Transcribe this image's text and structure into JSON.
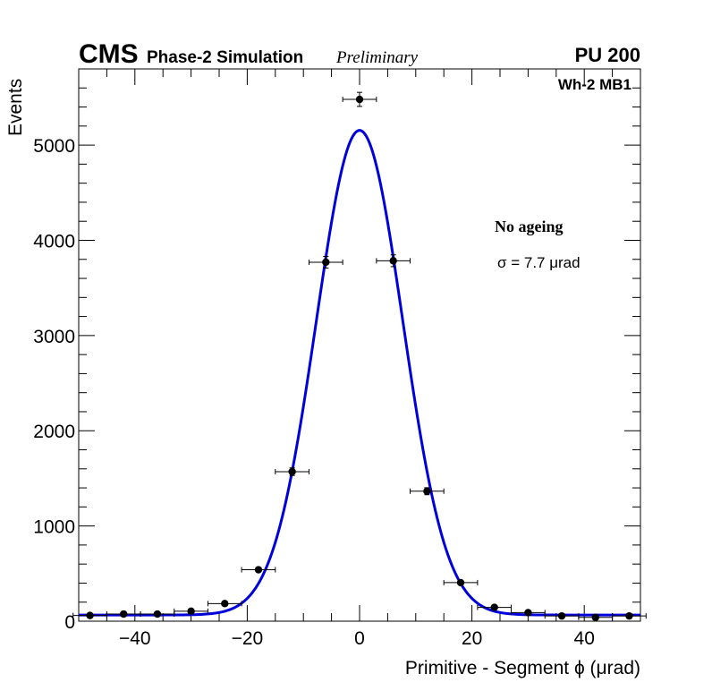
{
  "header": {
    "experiment": "CMS",
    "simulation_label": "Phase-2 Simulation",
    "status_label": "Preliminary",
    "pileup_label": "PU 200"
  },
  "chart_data": {
    "type": "scatter",
    "title": "",
    "chamber_label": "Wh-2 MB1",
    "condition_label": "No ageing",
    "sigma_label": "σ = 7.7  μrad",
    "xlabel": "Primitive - Segment ϕ (μrad)",
    "ylabel": "Events",
    "xlim": [
      -50,
      50
    ],
    "ylim": [
      0,
      5800
    ],
    "x_ticks": [
      -40,
      -20,
      0,
      20,
      40
    ],
    "x_tick_labels": [
      "−40",
      "−20",
      "0",
      "20",
      "40"
    ],
    "y_ticks": [
      0,
      1000,
      2000,
      3000,
      4000,
      5000
    ],
    "y_tick_labels": [
      "0",
      "1000",
      "2000",
      "3000",
      "4000",
      "5000"
    ],
    "grid": false,
    "series": [
      {
        "name": "data",
        "kind": "points-with-errors",
        "color": "#000000",
        "bin_half_width": 3,
        "x": [
          -48,
          -42,
          -36,
          -30,
          -24,
          -18,
          -12,
          -6,
          0,
          6,
          12,
          18,
          24,
          30,
          36,
          42,
          48
        ],
        "y": [
          60,
          75,
          75,
          105,
          185,
          540,
          1570,
          3770,
          5480,
          3785,
          1365,
          405,
          145,
          90,
          55,
          40,
          55
        ],
        "y_err": [
          8,
          9,
          9,
          10,
          14,
          23,
          40,
          61,
          74,
          62,
          37,
          20,
          12,
          9,
          7,
          6,
          7
        ]
      },
      {
        "name": "gaussian fit",
        "kind": "line",
        "color": "#0000dd",
        "function": "gaussian_plus_constant",
        "amplitude": 5090,
        "mean": 0,
        "sigma": 7.7,
        "constant": 65
      }
    ]
  }
}
